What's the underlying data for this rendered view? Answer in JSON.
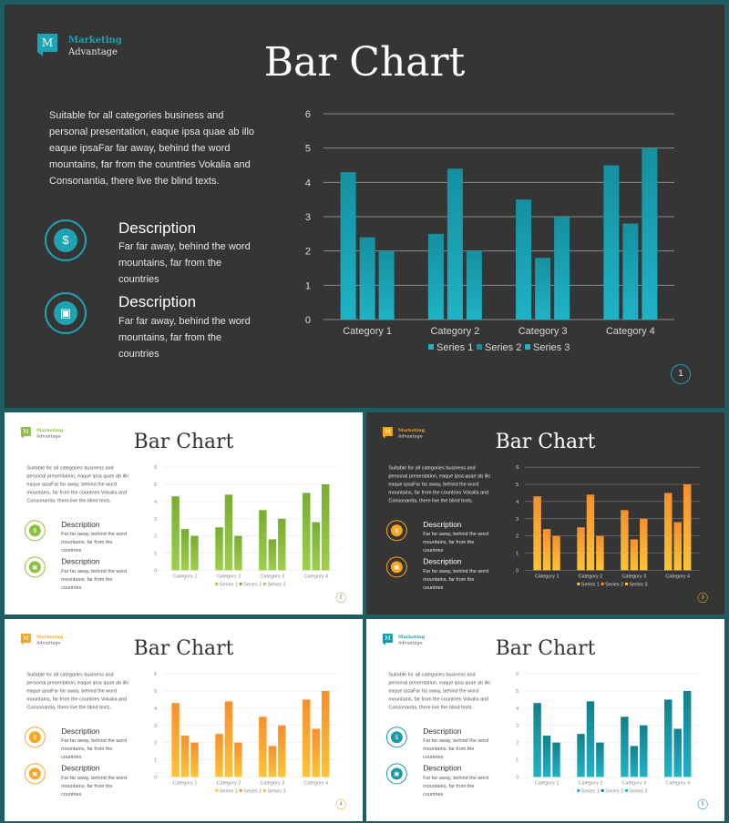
{
  "slides": [
    {
      "theme": "dark",
      "accent": "#1ea3b4",
      "bar_colors": [
        "#1fb3c6",
        "#1590a0"
      ],
      "logo_line1": "Marketing",
      "logo_line2": "Advantage",
      "logo_letter": "M",
      "title": "Bar Chart",
      "intro": "Suitable for all categories business and personal presentation, eaque ipsa quae ab illo eaque ipsaFar far away, behind the word mountains, far from the countries Vokalia and Consonantia, there live the blind texts.",
      "descriptions": [
        {
          "title": "Description",
          "text": "Far far away, behind the word mountains, far from the countries",
          "icon": "money-bag-icon",
          "glyph": "$"
        },
        {
          "title": "Description",
          "text": "Far far away, behind the word mountains, far from the countries",
          "icon": "briefcase-money-icon",
          "glyph": "▣"
        }
      ],
      "page_number": "1"
    },
    {
      "theme": "light",
      "accent": "#8dbf3f",
      "bar_colors": [
        "#9ccf4c",
        "#78ad33"
      ],
      "logo_line1": "Marketing",
      "logo_line2": "Advantage",
      "logo_letter": "M",
      "title": "Bar Chart",
      "intro": "Suitable for all categories business and personal presentation, eaque ipsa quae ab illo eaque ipsaFar far away, behind the word mountains, far from the countries Vokalia and Consonantia, there live the blind texts.",
      "descriptions": [
        {
          "title": "Description",
          "text": "Far far away, behind the word mountains, far from the countries",
          "icon": "money-bag-icon",
          "glyph": "$"
        },
        {
          "title": "Description",
          "text": "Far far away, behind the word mountains, far from the countries",
          "icon": "briefcase-money-icon",
          "glyph": "▣"
        }
      ],
      "page_number": "2"
    },
    {
      "theme": "dark",
      "accent": "#f5a623",
      "bar_colors": [
        "#fdc436",
        "#f78f2e"
      ],
      "logo_line1": "Marketing",
      "logo_line2": "Advantage",
      "logo_letter": "M",
      "title": "Bar Chart",
      "intro": "Suitable for all categories business and personal presentation, eaque ipsa quae ab illo eaque ipsaFar far away, behind the word mountains, far from the countries Vokalia and Consonantia, there live the blind texts.",
      "descriptions": [
        {
          "title": "Description",
          "text": "Far far away, behind the word mountains, far from the countries",
          "icon": "money-bag-icon",
          "glyph": "$"
        },
        {
          "title": "Description",
          "text": "Far far away, behind the word mountains, far from the countries",
          "icon": "briefcase-money-icon",
          "glyph": "▣"
        }
      ],
      "page_number": "3"
    },
    {
      "theme": "light",
      "accent": "#f5a623",
      "bar_colors": [
        "#fdc436",
        "#f78f2e"
      ],
      "logo_line1": "Marketing",
      "logo_line2": "Advantage",
      "logo_letter": "M",
      "title": "Bar Chart",
      "intro": "Suitable for all categories business and personal presentation, eaque ipsa quae ab illo eaque ipsaFar far away, behind the word mountains, far from the countries Vokalia and Consonantia, there live the blind texts.",
      "descriptions": [
        {
          "title": "Description",
          "text": "Far far away, behind the word mountains, far from the countries",
          "icon": "money-bag-icon",
          "glyph": "$"
        },
        {
          "title": "Description",
          "text": "Far far away, behind the word mountains, far from the countries",
          "icon": "briefcase-money-icon",
          "glyph": "▣"
        }
      ],
      "page_number": "4"
    },
    {
      "theme": "light",
      "accent": "#1a9aa8",
      "bar_colors": [
        "#1fb3c6",
        "#137f8c"
      ],
      "logo_line1": "Marketing",
      "logo_line2": "Advantage",
      "logo_letter": "M",
      "title": "Bar Chart",
      "intro": "Suitable for all categories business and personal presentation, eaque ipsa quae ab illo eaque ipsaFar far away, behind the word mountains, far from the countries Vokalia and Consonantia, there live the blind texts.",
      "descriptions": [
        {
          "title": "Description",
          "text": "Far far away, behind the word mountains, far from the countries",
          "icon": "money-bag-icon",
          "glyph": "$"
        },
        {
          "title": "Description",
          "text": "Far far away, behind the word mountains, far from the countries",
          "icon": "briefcase-money-icon",
          "glyph": "▣"
        }
      ],
      "page_number": "5"
    }
  ],
  "chart_data": {
    "type": "bar",
    "categories": [
      "Category 1",
      "Category 2",
      "Category 3",
      "Category 4"
    ],
    "series": [
      {
        "name": "Series 1",
        "values": [
          4.3,
          2.5,
          3.5,
          4.5
        ]
      },
      {
        "name": "Series 2",
        "values": [
          2.4,
          4.4,
          1.8,
          2.8
        ]
      },
      {
        "name": "Series 3",
        "values": [
          2.0,
          2.0,
          3.0,
          5.0
        ]
      }
    ],
    "yticks": [
      0,
      1,
      2,
      3,
      4,
      5,
      6
    ],
    "ylim": [
      0,
      6
    ],
    "grid": true,
    "legend": "bottom"
  }
}
